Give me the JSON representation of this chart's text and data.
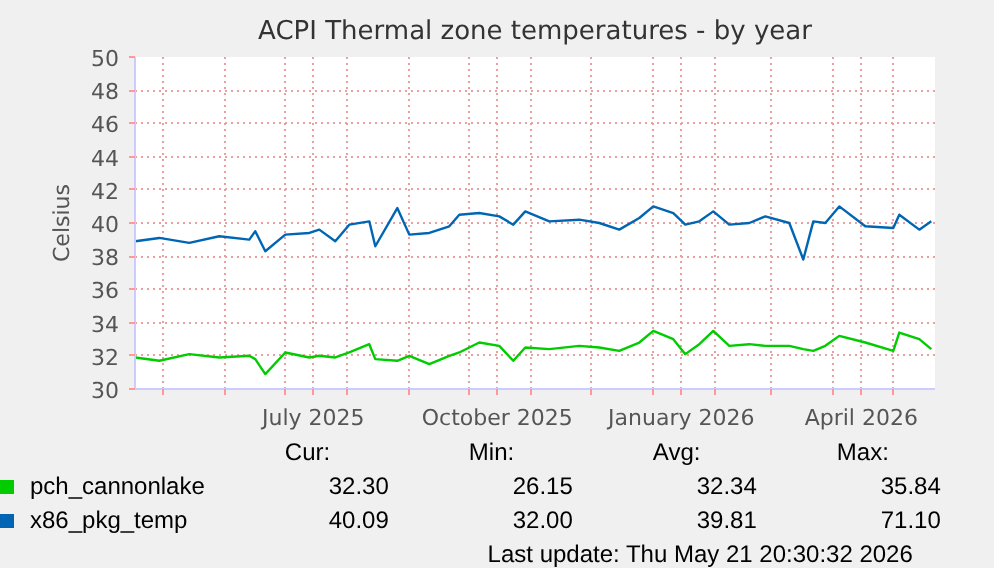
{
  "chart_data": {
    "type": "line",
    "title": "ACPI Thermal zone temperatures - by year",
    "ylabel": "Celsius",
    "x": [
      "2025-04-17",
      "2025-04-29",
      "2025-05-14",
      "2025-05-29",
      "2025-06-13",
      "2025-06-16",
      "2025-06-21",
      "2025-07-01",
      "2025-07-13",
      "2025-07-18",
      "2025-07-26",
      "2025-08-02",
      "2025-08-12",
      "2025-08-15",
      "2025-08-26",
      "2025-09-01",
      "2025-09-11",
      "2025-09-21",
      "2025-09-26",
      "2025-10-06",
      "2025-10-16",
      "2025-10-23",
      "2025-10-29",
      "2025-11-10",
      "2025-11-25",
      "2025-12-05",
      "2025-12-15",
      "2025-12-25",
      "2026-01-01",
      "2026-01-11",
      "2026-01-17",
      "2026-01-24",
      "2026-01-31",
      "2026-02-08",
      "2026-02-18",
      "2026-02-26",
      "2026-03-10",
      "2026-03-17",
      "2026-03-22",
      "2026-03-28",
      "2026-04-04",
      "2026-04-17",
      "2026-05-01",
      "2026-05-04",
      "2026-05-14",
      "2026-05-20"
    ],
    "series": [
      {
        "name": "pch_cannonlake",
        "color": "#00cc00",
        "values": [
          31.9,
          31.7,
          32.1,
          31.9,
          32.0,
          31.8,
          30.9,
          32.2,
          31.9,
          32.0,
          31.9,
          32.2,
          32.7,
          31.8,
          31.7,
          32.0,
          31.5,
          32.0,
          32.2,
          32.8,
          32.6,
          31.7,
          32.5,
          32.4,
          32.6,
          32.5,
          32.3,
          32.8,
          33.5,
          33.0,
          32.1,
          32.7,
          33.5,
          32.6,
          32.7,
          32.6,
          32.6,
          32.4,
          32.3,
          32.6,
          33.2,
          32.8,
          32.3,
          33.4,
          33.0,
          32.4
        ]
      },
      {
        "name": "x86_pkg_temp",
        "color": "#0066b3",
        "values": [
          38.9,
          39.1,
          38.8,
          39.2,
          39.0,
          39.5,
          38.3,
          39.3,
          39.4,
          39.6,
          38.9,
          39.9,
          40.1,
          38.6,
          40.9,
          39.3,
          39.4,
          39.8,
          40.5,
          40.6,
          40.4,
          39.9,
          40.7,
          40.1,
          40.2,
          40.0,
          39.6,
          40.3,
          41.0,
          40.6,
          39.9,
          40.1,
          40.7,
          39.9,
          40.0,
          40.4,
          40.0,
          37.8,
          40.1,
          40.0,
          41.0,
          39.8,
          39.7,
          40.5,
          39.6,
          40.1
        ]
      }
    ],
    "xlim": [
      "2025-04-16T20:30",
      "2026-05-21T20:30"
    ],
    "xticks": [
      {
        "value": "2025-05-01",
        "label": null
      },
      {
        "value": "2025-06-01",
        "label": null
      },
      {
        "value": "2025-07-01",
        "label": null
      },
      {
        "value": "2025-07-15",
        "label": "July 2025"
      },
      {
        "value": "2025-08-01",
        "label": null
      },
      {
        "value": "2025-09-01",
        "label": null
      },
      {
        "value": "2025-10-01",
        "label": null
      },
      {
        "value": "2025-10-15",
        "label": "October 2025"
      },
      {
        "value": "2025-11-01",
        "label": null
      },
      {
        "value": "2025-12-01",
        "label": null
      },
      {
        "value": "2026-01-01",
        "label": null
      },
      {
        "value": "2026-01-15",
        "label": "January 2026"
      },
      {
        "value": "2026-02-01",
        "label": null
      },
      {
        "value": "2026-03-01",
        "label": null
      },
      {
        "value": "2026-04-01",
        "label": null
      },
      {
        "value": "2026-04-15",
        "label": "April 2026"
      },
      {
        "value": "2026-05-01",
        "label": null
      }
    ],
    "ylim": [
      30,
      50
    ],
    "yticks": [
      30,
      32,
      34,
      36,
      38,
      40,
      42,
      44,
      46,
      48,
      50
    ],
    "grid": true,
    "legend": "bottom",
    "line_style": "solid",
    "annotations": [
      "Cur:",
      "Min:",
      "Avg:",
      "Max:",
      "32.30",
      "26.15",
      "32.34",
      "35.84",
      "40.09",
      "32.00",
      "39.81",
      "71.10",
      "Last update: Thu May 21 20:30:32 2026"
    ]
  }
}
